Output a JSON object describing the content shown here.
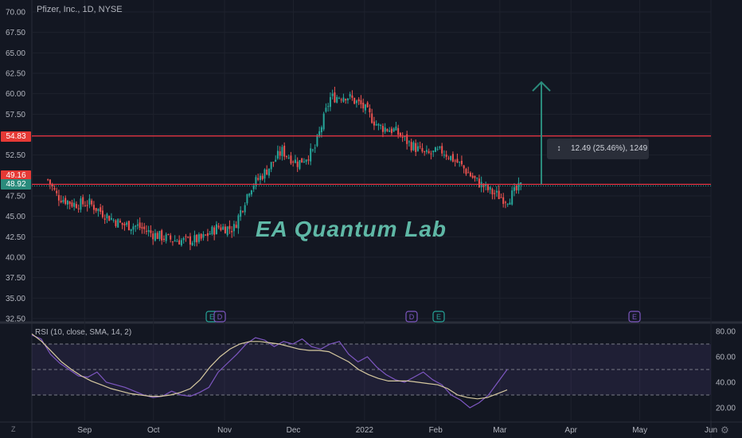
{
  "header": {
    "title": "Pfizer, Inc., 1D, NYSE"
  },
  "rsi_header": {
    "title": "RSI (10, close, SMA, 14, 2)"
  },
  "watermark": {
    "text": "EA Quantum Lab"
  },
  "measure": {
    "label": "12.49 (25.46%), 1249"
  },
  "badges": {
    "resistance": "54.83",
    "last_close": "49.16",
    "current": "48.92"
  },
  "footer": {
    "zoom_label": "Z"
  },
  "colors": {
    "background": "#131722",
    "up": "#26a69a",
    "down": "#ef5350",
    "rsi_line": "#7e57c2",
    "rsi_sma": "#d6c9a0",
    "level_line": "#f23645",
    "arrow": "#2a8b7c"
  },
  "chart_data": [
    {
      "type": "candlestick",
      "title": "Pfizer, Inc., 1D, NYSE",
      "ylim": [
        32.5,
        70.0
      ],
      "y_ticks": [
        "70.00",
        "67.50",
        "65.00",
        "62.50",
        "60.00",
        "57.50",
        "55.00",
        "52.50",
        "50.00",
        "47.50",
        "45.00",
        "42.50",
        "40.00",
        "37.50",
        "35.00",
        "32.50"
      ],
      "x_ticks": [
        "Sep",
        "Oct",
        "Nov",
        "Dec",
        "2022",
        "Feb",
        "Mar",
        "Apr",
        "May",
        "Jun"
      ],
      "close_path": [
        {
          "date": "2021-08-16",
          "close": 49.5
        },
        {
          "date": "2021-08-20",
          "close": 47.5
        },
        {
          "date": "2021-08-27",
          "close": 46.5
        },
        {
          "date": "2021-09-03",
          "close": 46.6
        },
        {
          "date": "2021-09-10",
          "close": 45.2
        },
        {
          "date": "2021-09-17",
          "close": 44.0
        },
        {
          "date": "2021-09-24",
          "close": 43.8
        },
        {
          "date": "2021-10-01",
          "close": 42.8
        },
        {
          "date": "2021-10-08",
          "close": 42.2
        },
        {
          "date": "2021-10-15",
          "close": 42.0
        },
        {
          "date": "2021-10-22",
          "close": 42.2
        },
        {
          "date": "2021-10-29",
          "close": 43.7
        },
        {
          "date": "2021-11-05",
          "close": 43.5
        },
        {
          "date": "2021-11-12",
          "close": 48.5
        },
        {
          "date": "2021-11-19",
          "close": 50.5
        },
        {
          "date": "2021-11-26",
          "close": 53.0
        },
        {
          "date": "2021-12-03",
          "close": 51.5
        },
        {
          "date": "2021-12-10",
          "close": 53.0
        },
        {
          "date": "2021-12-17",
          "close": 59.5
        },
        {
          "date": "2021-12-24",
          "close": 59.8
        },
        {
          "date": "2021-12-31",
          "close": 58.5
        },
        {
          "date": "2022-01-07",
          "close": 56.0
        },
        {
          "date": "2022-01-14",
          "close": 55.5
        },
        {
          "date": "2022-01-21",
          "close": 53.8
        },
        {
          "date": "2022-01-28",
          "close": 52.5
        },
        {
          "date": "2022-02-04",
          "close": 53.0
        },
        {
          "date": "2022-02-11",
          "close": 51.5
        },
        {
          "date": "2022-02-18",
          "close": 49.5
        },
        {
          "date": "2022-02-25",
          "close": 48.0
        },
        {
          "date": "2022-03-04",
          "close": 47.0
        },
        {
          "date": "2022-03-11",
          "close": 48.9
        }
      ],
      "horizontal_levels": [
        54.83,
        48.92
      ],
      "measure": {
        "text": "12.49 (25.46%), 1249",
        "from": 48.92,
        "to": 61.41
      },
      "event_markers": [
        "E",
        "D",
        "D",
        "E",
        "E"
      ]
    },
    {
      "type": "line",
      "title": "RSI (10, close, SMA, 14, 2)",
      "ylim": [
        10,
        85
      ],
      "y_ticks": [
        "80.00",
        "60.00",
        "40.00",
        "20.00"
      ],
      "bands": [
        70,
        50,
        30
      ],
      "series": [
        {
          "values": [
            77,
            74,
            62,
            55,
            50,
            45,
            44,
            48,
            40,
            38,
            36,
            33,
            30,
            28,
            29,
            33,
            30,
            29,
            32,
            36,
            48,
            55,
            62,
            70,
            75,
            73,
            68,
            72,
            70,
            74,
            68,
            66,
            70,
            72,
            62,
            56,
            60,
            52,
            46,
            42,
            40,
            44,
            48,
            42,
            38,
            30,
            26,
            20,
            24,
            30,
            40,
            50
          ]
        },
        {
          "values": [
            78,
            72,
            64,
            56,
            50,
            45,
            41,
            38,
            35,
            33,
            31,
            30,
            29,
            29,
            30,
            32,
            35,
            42,
            52,
            60,
            66,
            70,
            72,
            72,
            71,
            70,
            68,
            66,
            65,
            65,
            64,
            60,
            56,
            50,
            46,
            43,
            41,
            41,
            41,
            40,
            39,
            38,
            35,
            30,
            28,
            27,
            28,
            31,
            34
          ]
        }
      ]
    }
  ]
}
